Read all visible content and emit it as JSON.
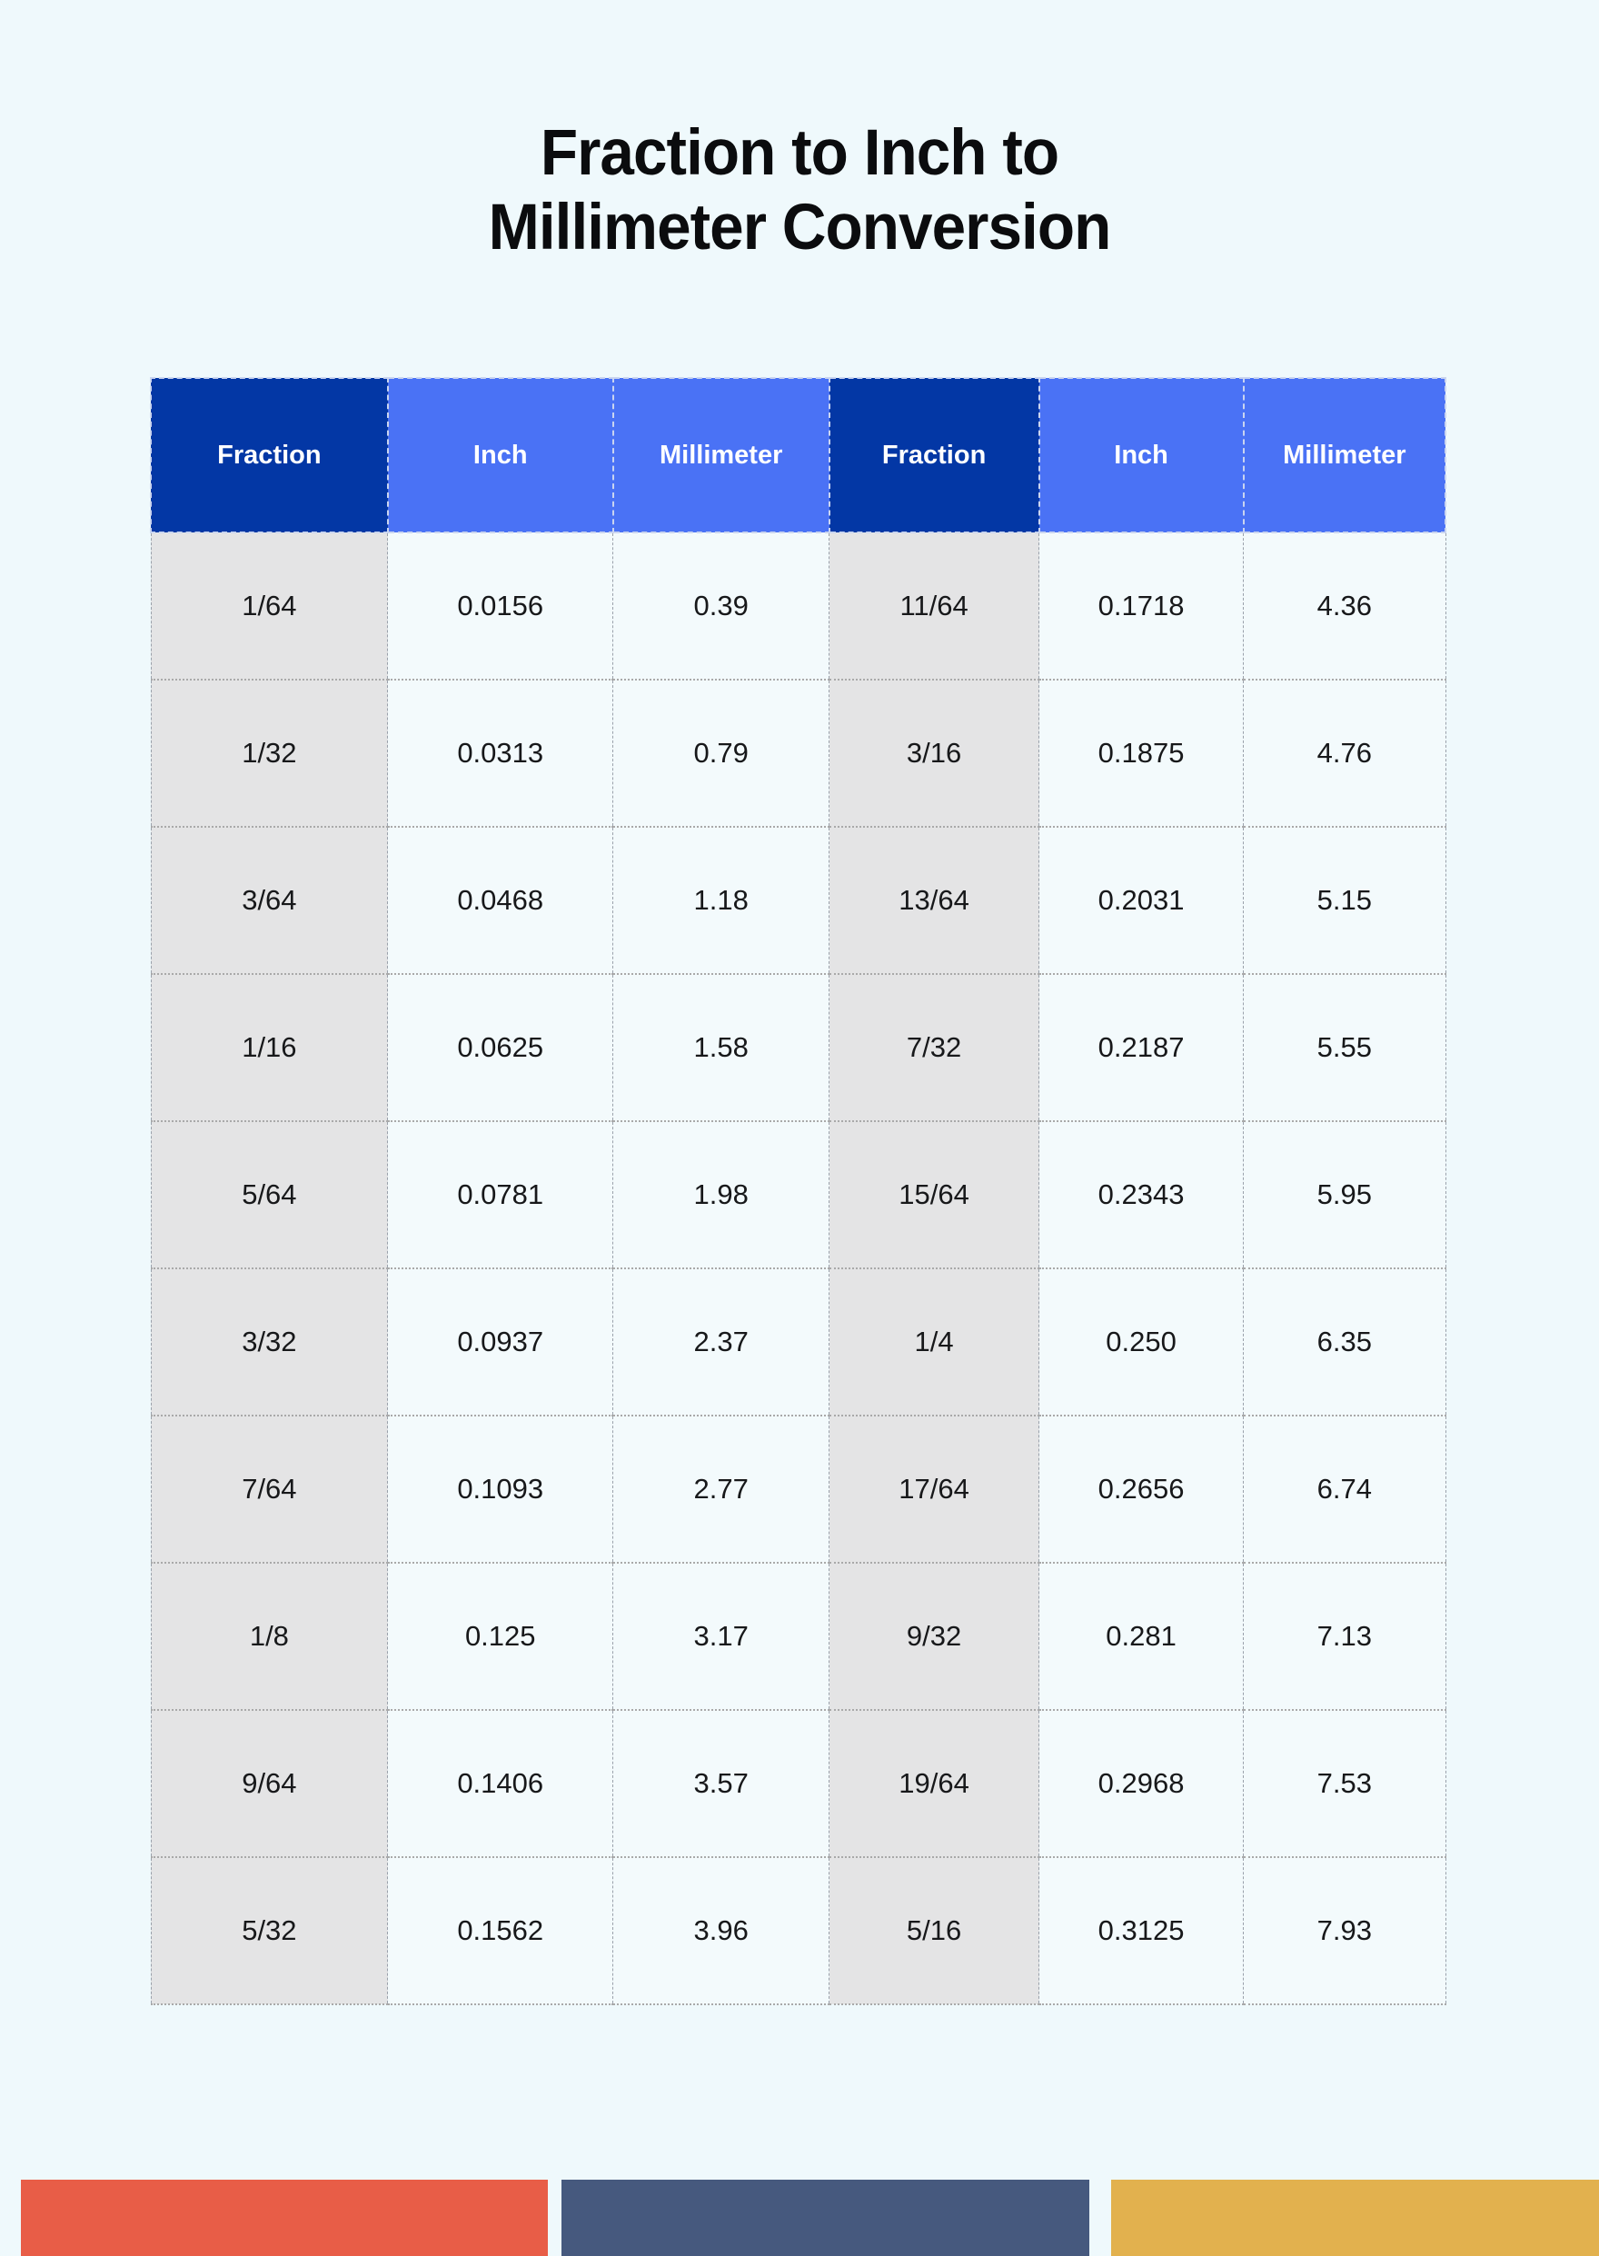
{
  "page": {
    "title_line1": "Fraction to Inch to",
    "title_line2": "Millimeter Conversion"
  },
  "table": {
    "headers": [
      "Fraction",
      "Inch",
      "Millimeter",
      "Fraction",
      "Inch",
      "Millimeter"
    ],
    "rows": [
      [
        "1/64",
        "0.0156",
        "0.39",
        "11/64",
        "0.1718",
        "4.36"
      ],
      [
        "1/32",
        "0.0313",
        "0.79",
        "3/16",
        "0.1875",
        "4.76"
      ],
      [
        "3/64",
        "0.0468",
        "1.18",
        "13/64",
        "0.2031",
        "5.15"
      ],
      [
        "1/16",
        "0.0625",
        "1.58",
        "7/32",
        "0.2187",
        "5.55"
      ],
      [
        "5/64",
        "0.0781",
        "1.98",
        "15/64",
        "0.2343",
        "5.95"
      ],
      [
        "3/32",
        "0.0937",
        "2.37",
        "1/4",
        "0.250",
        "6.35"
      ],
      [
        "7/64",
        "0.1093",
        "2.77",
        "17/64",
        "0.2656",
        "6.74"
      ],
      [
        "1/8",
        "0.125",
        "3.17",
        "9/32",
        "0.281",
        "7.13"
      ],
      [
        "9/64",
        "0.1406",
        "3.57",
        "19/64",
        "0.2968",
        "7.53"
      ],
      [
        "5/32",
        "0.1562",
        "3.96",
        "5/16",
        "0.3125",
        "7.93"
      ]
    ]
  },
  "chart_data": {
    "type": "table",
    "title": "Fraction to Inch to Millimeter Conversion",
    "columns": [
      "Fraction",
      "Inch",
      "Millimeter",
      "Fraction",
      "Inch",
      "Millimeter"
    ],
    "rows": [
      [
        "1/64",
        0.0156,
        0.39,
        "11/64",
        0.1718,
        4.36
      ],
      [
        "1/32",
        0.0313,
        0.79,
        "3/16",
        0.1875,
        4.76
      ],
      [
        "3/64",
        0.0468,
        1.18,
        "13/64",
        0.2031,
        5.15
      ],
      [
        "1/16",
        0.0625,
        1.58,
        "7/32",
        0.2187,
        5.55
      ],
      [
        "5/64",
        0.0781,
        1.98,
        "15/64",
        0.2343,
        5.95
      ],
      [
        "3/32",
        0.0937,
        2.37,
        "1/4",
        0.25,
        6.35
      ],
      [
        "7/64",
        0.1093,
        2.77,
        "17/64",
        0.2656,
        6.74
      ],
      [
        "1/8",
        0.125,
        3.17,
        "9/32",
        0.281,
        7.13
      ],
      [
        "9/64",
        0.1406,
        3.57,
        "19/64",
        0.2968,
        7.53
      ],
      [
        "5/32",
        0.1562,
        3.96,
        "5/16",
        0.3125,
        7.93
      ]
    ]
  },
  "colors": {
    "page_background": "#eff9fc",
    "header_dark_blue": "#0337a5",
    "header_light_blue": "#4a72f5",
    "fraction_cell_gray": "#e4e4e5",
    "value_cell_pale": "#f3fafc",
    "footer_bar_red": "#e85d47",
    "footer_bar_navy": "#46597e",
    "footer_bar_gold": "#e2b14e"
  },
  "footer": {
    "bars": [
      {
        "name": "red-bar",
        "color": "#e85d47"
      },
      {
        "name": "navy-bar",
        "color": "#46597e"
      },
      {
        "name": "gold-bar",
        "color": "#e2b14e"
      }
    ]
  }
}
